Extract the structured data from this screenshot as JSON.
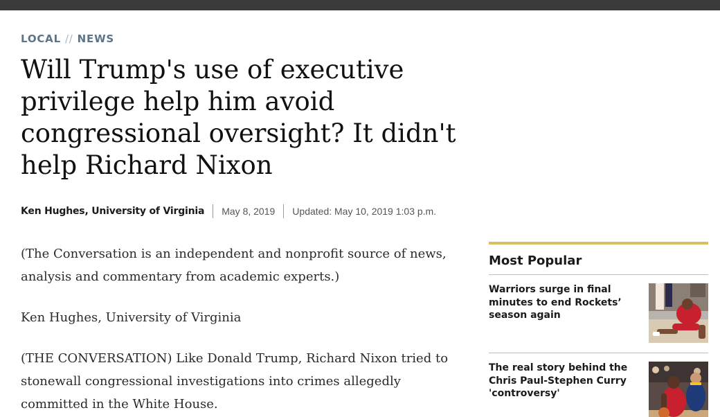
{
  "kicker": {
    "section": "LOCAL",
    "separator": "//",
    "subsection": "NEWS"
  },
  "article": {
    "headline": "Will Trump's use of executive privilege help him avoid congressional oversight? It didn't help Richard Nixon",
    "author": "Ken Hughes, University of Virginia",
    "published": "May 8, 2019",
    "updated": "Updated: May 10, 2019 1:03 p.m.",
    "paragraphs": [
      "(The Conversation is an independent and nonprofit source of news, analysis and commentary from academic experts.)",
      "Ken Hughes, University of Virginia",
      "(THE CONVERSATION) Like Donald Trump, Richard Nixon tried to stonewall congressional investigations into crimes allegedly committed in the White House."
    ]
  },
  "sidebar": {
    "title": "Most Popular",
    "items": [
      {
        "title": "Warriors surge in final minutes to end Rockets’ season again",
        "thumb_icon": "basketball-player-sitting-photo"
      },
      {
        "title": "The real story behind the Chris Paul-Stephen Curry 'controversy'",
        "thumb_icon": "basketball-players-photo"
      }
    ]
  },
  "colors": {
    "topbar": "#3b3b3b",
    "kicker": "#5b7487",
    "accent_rule": "#d8c062"
  }
}
